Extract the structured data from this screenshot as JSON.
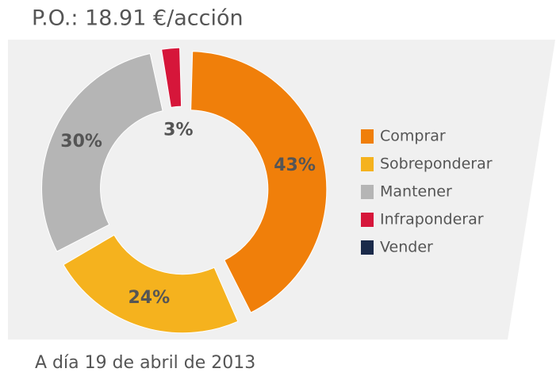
{
  "chart_data": {
    "type": "donut",
    "title": "P.O.: 18.91 €/acción",
    "subtitle": "A día 19 de abril de 2013",
    "series": [
      {
        "name": "Comprar",
        "color": "#f07f0a"
      },
      {
        "name": "Sobreponderar",
        "color": "#f5b21e"
      },
      {
        "name": "Mantener",
        "color": "#b5b5b5"
      },
      {
        "name": "Infraponderar",
        "color": "#d6163a"
      },
      {
        "name": "Vender",
        "color": "#1a2a4a"
      }
    ],
    "values": [
      43,
      24,
      30,
      3,
      0
    ],
    "value_labels": [
      "43%",
      "24%",
      "30%",
      "3%",
      null
    ],
    "legend": "right"
  }
}
